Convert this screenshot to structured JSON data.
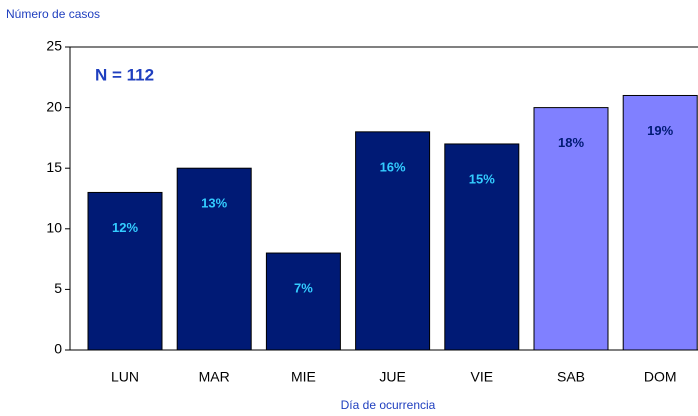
{
  "chart_data": {
    "type": "bar",
    "y_label": "Número de casos",
    "x_label": "Día de ocurrencia",
    "annotation": "N = 112",
    "categories": [
      "LUN",
      "MAR",
      "MIE",
      "JUE",
      "VIE",
      "SAB",
      "DOM"
    ],
    "values": [
      13,
      15,
      8,
      18,
      17,
      20,
      21
    ],
    "percent_labels": [
      "12%",
      "13%",
      "7%",
      "16%",
      "15%",
      "18%",
      "19%"
    ],
    "colors": [
      "#001a75",
      "#001a75",
      "#001a75",
      "#001a75",
      "#001a75",
      "#8080ff",
      "#8080ff"
    ],
    "label_colors": [
      "#33ccff",
      "#33ccff",
      "#33ccff",
      "#33ccff",
      "#33ccff",
      "#001a75",
      "#001a75"
    ],
    "ylim": [
      0,
      25
    ],
    "yticks": [
      0,
      5,
      10,
      15,
      20,
      25
    ]
  }
}
